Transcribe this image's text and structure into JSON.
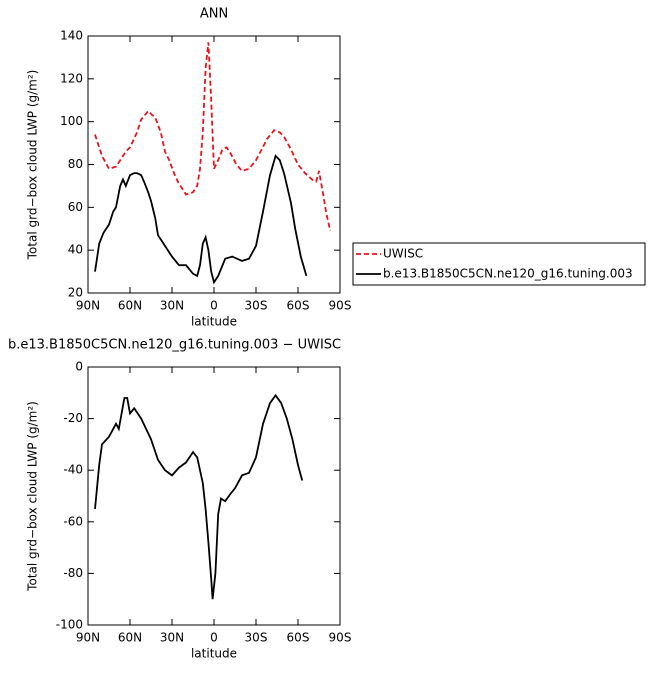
{
  "chart_data": [
    {
      "type": "line",
      "title": "ANN",
      "xlabel": "latitude",
      "ylabel": "Total grd−box cloud LWP (g/m²)",
      "xlim": [
        90,
        -90
      ],
      "xticks": [
        {
          "value": 90,
          "label": "90N"
        },
        {
          "value": 60,
          "label": "60N"
        },
        {
          "value": 30,
          "label": "30N"
        },
        0,
        {
          "value": -30,
          "label": "30S"
        },
        {
          "value": -60,
          "label": "60S"
        },
        {
          "value": -90,
          "label": "90S"
        }
      ],
      "ylim": [
        20,
        140
      ],
      "yticks": [
        20,
        40,
        60,
        80,
        100,
        120,
        140
      ],
      "legend": "right",
      "series": [
        {
          "name": "UWISC",
          "color": "#e8141b",
          "dash": true,
          "x": [
            85,
            80,
            75,
            70,
            67,
            63,
            60,
            55,
            52,
            47,
            44,
            42,
            38,
            35,
            32,
            28,
            25,
            20,
            15,
            12,
            10,
            8,
            6,
            4,
            2,
            0,
            -3,
            -6,
            -9,
            -12,
            -16,
            -20,
            -25,
            -30,
            -34,
            -38,
            -43,
            -47,
            -50,
            -55,
            -60,
            -65,
            -70,
            -73,
            -75,
            -78,
            -80,
            -83
          ],
          "values": [
            94,
            84,
            78,
            79,
            82,
            86,
            88,
            95,
            101,
            105,
            103,
            102,
            95,
            86,
            82,
            75,
            71,
            66,
            67,
            70,
            78,
            95,
            125,
            137,
            110,
            78,
            82,
            87,
            88,
            85,
            80,
            77,
            78,
            82,
            87,
            92,
            96,
            95,
            93,
            87,
            80,
            76,
            73,
            72,
            77,
            66,
            58,
            49
          ]
        },
        {
          "name": "b.e13.B1850C5CN.ne120_g16.tuning.003",
          "color": "#000000",
          "dash": false,
          "x": [
            85,
            82,
            79,
            75,
            72,
            70,
            67,
            65,
            63,
            60,
            57,
            55,
            52,
            50,
            47,
            45,
            42,
            40,
            35,
            30,
            25,
            20,
            15,
            12,
            10,
            8,
            6,
            4,
            2,
            0,
            -3,
            -8,
            -13,
            -20,
            -25,
            -30,
            -35,
            -40,
            -44,
            -47,
            -50,
            -55,
            -58,
            -62,
            -66
          ],
          "values": [
            30,
            43,
            48,
            52,
            58,
            60,
            70,
            73,
            70,
            75,
            76,
            76,
            75,
            72,
            67,
            63,
            55,
            47,
            42,
            37,
            33,
            33,
            29,
            28,
            33,
            43,
            46,
            40,
            30,
            25,
            28,
            36,
            37,
            35,
            36,
            42,
            58,
            75,
            84,
            82,
            76,
            62,
            50,
            37,
            28
          ]
        }
      ]
    },
    {
      "type": "line",
      "title": "b.e13.B1850C5CN.ne120_g16.tuning.003 − UWISC",
      "xlabel": "latitude",
      "ylabel": "Total grd−box cloud LWP (g/m²)",
      "xlim": [
        90,
        -90
      ],
      "xticks": [
        {
          "value": 90,
          "label": "90N"
        },
        {
          "value": 60,
          "label": "60N"
        },
        {
          "value": 30,
          "label": "30N"
        },
        0,
        {
          "value": -30,
          "label": "30S"
        },
        {
          "value": -60,
          "label": "60S"
        },
        {
          "value": -90,
          "label": "90S"
        }
      ],
      "ylim": [
        -100,
        0
      ],
      "yticks": [
        -100,
        -80,
        -60,
        -40,
        -20,
        0
      ],
      "series": [
        {
          "color": "#000000",
          "dash": false,
          "x": [
            85,
            82,
            80,
            75,
            70,
            68,
            64,
            62,
            60,
            57,
            52,
            45,
            40,
            35,
            30,
            25,
            20,
            15,
            12,
            8,
            6,
            4,
            2,
            1,
            -1,
            -3,
            -5,
            -8,
            -12,
            -15,
            -20,
            -25,
            -30,
            -35,
            -40,
            -44,
            -48,
            -52,
            -56,
            -60,
            -63
          ],
          "values": [
            -55,
            -38,
            -30,
            -27,
            -22,
            -24,
            -12,
            -12,
            -18,
            -16,
            -20,
            -28,
            -36,
            -40,
            -42,
            -39,
            -37,
            -33,
            -35,
            -45,
            -55,
            -68,
            -82,
            -90,
            -80,
            -57,
            -51,
            -52,
            -49,
            -47,
            -42,
            -41,
            -35,
            -22,
            -14,
            -11,
            -14,
            -20,
            -28,
            -38,
            -44
          ]
        }
      ]
    }
  ]
}
